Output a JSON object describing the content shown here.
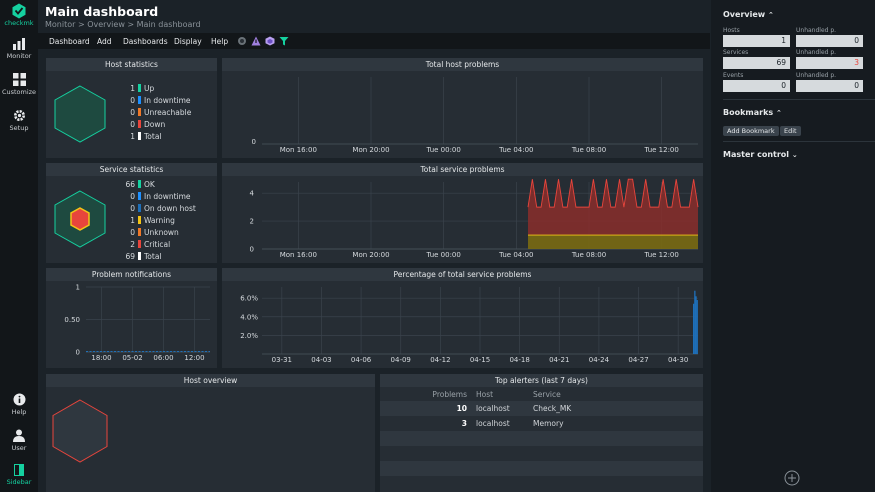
{
  "brand": {
    "logo_text": "checkmk",
    "accent": "#15d1a0"
  },
  "nav": {
    "items": [
      {
        "label": "Monitor",
        "icon": "bar-chart-icon"
      },
      {
        "label": "Customize",
        "icon": "grid-icon"
      },
      {
        "label": "Setup",
        "icon": "gear-icon"
      }
    ],
    "bottom": [
      {
        "label": "Help",
        "icon": "info-icon"
      },
      {
        "label": "User",
        "icon": "user-icon"
      },
      {
        "label": "Sidebar",
        "icon": "sidebar-icon"
      }
    ]
  },
  "header": {
    "title": "Main dashboard",
    "breadcrumb": "Monitor > Overview > Main dashboard"
  },
  "menubar": {
    "items": [
      "Dashboard",
      "Add",
      "Dashboards",
      "Display",
      "Help"
    ],
    "icons": [
      "circle-icon",
      "warning-triangle-icon",
      "cube-icon",
      "filter-icon"
    ]
  },
  "host_stats": {
    "title": "Host statistics",
    "rows": [
      {
        "count": "1",
        "label": "Up",
        "color": "#15d1a0"
      },
      {
        "count": "0",
        "label": "In downtime",
        "color": "#1e90ff"
      },
      {
        "count": "0",
        "label": "Unreachable",
        "color": "#f07828"
      },
      {
        "count": "0",
        "label": "Down",
        "color": "#e8453c"
      },
      {
        "count": "1",
        "label": "Total",
        "color": "#ffffff"
      }
    ]
  },
  "service_stats": {
    "title": "Service statistics",
    "rows": [
      {
        "count": "66",
        "label": "OK",
        "color": "#15d1a0"
      },
      {
        "count": "0",
        "label": "In downtime",
        "color": "#1e90ff"
      },
      {
        "count": "0",
        "label": "On down host",
        "color": "#1e6fb8"
      },
      {
        "count": "1",
        "label": "Warning",
        "color": "#f2c416"
      },
      {
        "count": "0",
        "label": "Unknown",
        "color": "#f07828"
      },
      {
        "count": "2",
        "label": "Critical",
        "color": "#e8453c"
      },
      {
        "count": "69",
        "label": "Total",
        "color": "#ffffff"
      }
    ]
  },
  "notifications": {
    "title": "Problem notifications"
  },
  "host_overview": {
    "title": "Host overview"
  },
  "top_alerters": {
    "title": "Top alerters (last 7 days)",
    "headers": [
      "Problems",
      "Host",
      "Service"
    ],
    "rows": [
      {
        "problems": "10",
        "host": "localhost",
        "service": "Check_MK"
      },
      {
        "problems": "3",
        "host": "localhost",
        "service": "Memory"
      }
    ]
  },
  "chart_data": [
    {
      "type": "line",
      "title": "Total host problems",
      "x_ticks": [
        "Mon 16:00",
        "Mon 20:00",
        "Tue 00:00",
        "Tue 04:00",
        "Tue 08:00",
        "Tue 12:00"
      ],
      "y_ticks": [
        "0"
      ],
      "series": []
    },
    {
      "type": "area",
      "title": "Total service problems",
      "x_ticks": [
        "Mon 16:00",
        "Mon 20:00",
        "Tue 00:00",
        "Tue 04:00",
        "Tue 08:00",
        "Tue 12:00"
      ],
      "y_ticks": [
        "0",
        "2",
        "4"
      ],
      "ylim": [
        0,
        4.8
      ],
      "series": [
        {
          "color": "#f2c416",
          "values": [
            1,
            1,
            1,
            1,
            1,
            1,
            1,
            1,
            1,
            1,
            1,
            1,
            1,
            1,
            1,
            1,
            1,
            1,
            1,
            1,
            1,
            1,
            1,
            1,
            1,
            1,
            1,
            1,
            1,
            1,
            1,
            1,
            1,
            1,
            1,
            1,
            1,
            1,
            1,
            1
          ]
        },
        {
          "color": "#e8453c",
          "values": [
            2,
            4,
            2,
            2,
            4,
            2,
            2,
            4,
            2,
            2,
            4,
            2,
            2,
            2,
            2,
            4,
            2,
            2,
            4,
            2,
            2,
            4,
            2,
            4,
            4,
            2,
            2,
            4,
            2,
            2,
            2,
            4,
            2,
            2,
            4,
            2,
            2,
            2,
            4,
            2
          ]
        }
      ]
    },
    {
      "type": "line",
      "title": "Problem notifications",
      "x_ticks": [
        "18:00",
        "05-02",
        "06:00",
        "12:00"
      ],
      "y_ticks": [
        "0",
        "0.50",
        "1"
      ],
      "ylim": [
        0,
        1
      ],
      "series": [
        {
          "values": [
            0,
            0
          ]
        }
      ]
    },
    {
      "type": "bar",
      "title": "Percentage of total service problems",
      "x_ticks": [
        "03-31",
        "04-03",
        "04-06",
        "04-09",
        "04-12",
        "04-15",
        "04-18",
        "04-21",
        "04-24",
        "04-27",
        "04-30"
      ],
      "y_ticks": [
        "2.0%",
        "4.0%",
        "6.0%"
      ],
      "ylim": [
        0,
        7.2
      ],
      "series": [
        {
          "color": "#1e6fb8",
          "values": [
            5.4,
            6.8,
            6.2,
            5.8
          ]
        }
      ]
    }
  ],
  "overview_panel": {
    "title": "Overview",
    "rows": [
      {
        "label": "Hosts",
        "value": "1",
        "label2": "Unhandled p.",
        "value2": "0",
        "value2_color": "#1b2228"
      },
      {
        "label": "Services",
        "value": "69",
        "label2": "Unhandled p.",
        "value2": "3",
        "value2_color": "#e8453c"
      },
      {
        "label": "Events",
        "value": "0",
        "label2": "Unhandled p.",
        "value2": "0",
        "value2_color": "#1b2228"
      }
    ]
  },
  "bookmarks": {
    "title": "Bookmarks",
    "add_label": "Add Bookmark",
    "edit_label": "Edit"
  },
  "master_control": {
    "title": "Master control"
  }
}
